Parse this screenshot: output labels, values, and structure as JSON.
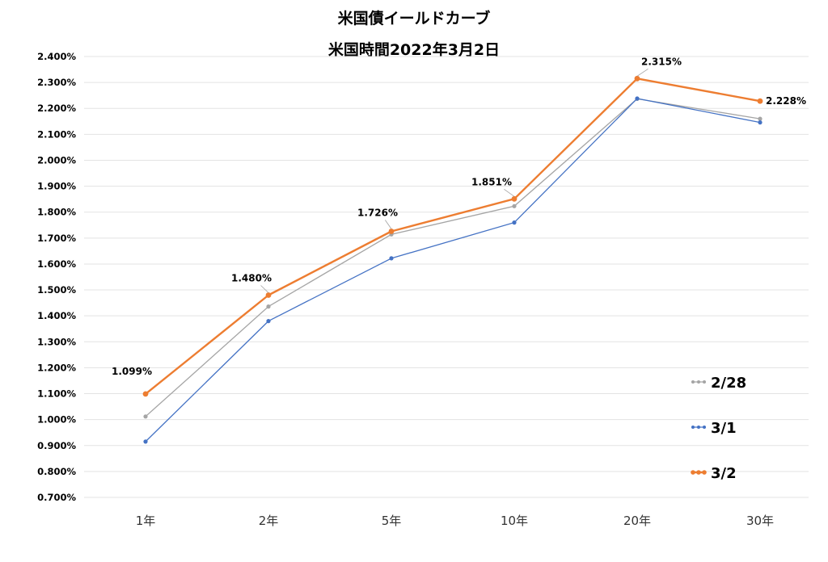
{
  "chart_data": {
    "type": "line",
    "title": "米国債イールドカーブ",
    "subtitle": "米国時間2022年3月2日",
    "categories": [
      "1年",
      "2年",
      "5年",
      "10年",
      "20年",
      "30年"
    ],
    "yticks": [
      "0.700%",
      "0.800%",
      "0.900%",
      "1.000%",
      "1.100%",
      "1.200%",
      "1.300%",
      "1.400%",
      "1.500%",
      "1.600%",
      "1.700%",
      "1.800%",
      "1.900%",
      "2.000%",
      "2.100%",
      "2.200%",
      "2.300%",
      "2.400%"
    ],
    "ylim": [
      0.7,
      2.4
    ],
    "grid": true,
    "legend_position": "right",
    "series": [
      {
        "name": "2/28",
        "color": "#a5a5a5",
        "values": [
          1.012,
          1.436,
          1.714,
          1.823,
          2.237,
          2.16
        ]
      },
      {
        "name": "3/1",
        "color": "#4472c4",
        "values": [
          0.915,
          1.38,
          1.622,
          1.76,
          2.238,
          2.146
        ]
      },
      {
        "name": "3/2",
        "color": "#ed7d31",
        "values": [
          1.099,
          1.48,
          1.726,
          1.851,
          2.315,
          2.228
        ]
      }
    ],
    "data_labels": [
      "1.099%",
      "1.480%",
      "1.726%",
      "1.851%",
      "2.315%",
      "2.228%"
    ]
  }
}
